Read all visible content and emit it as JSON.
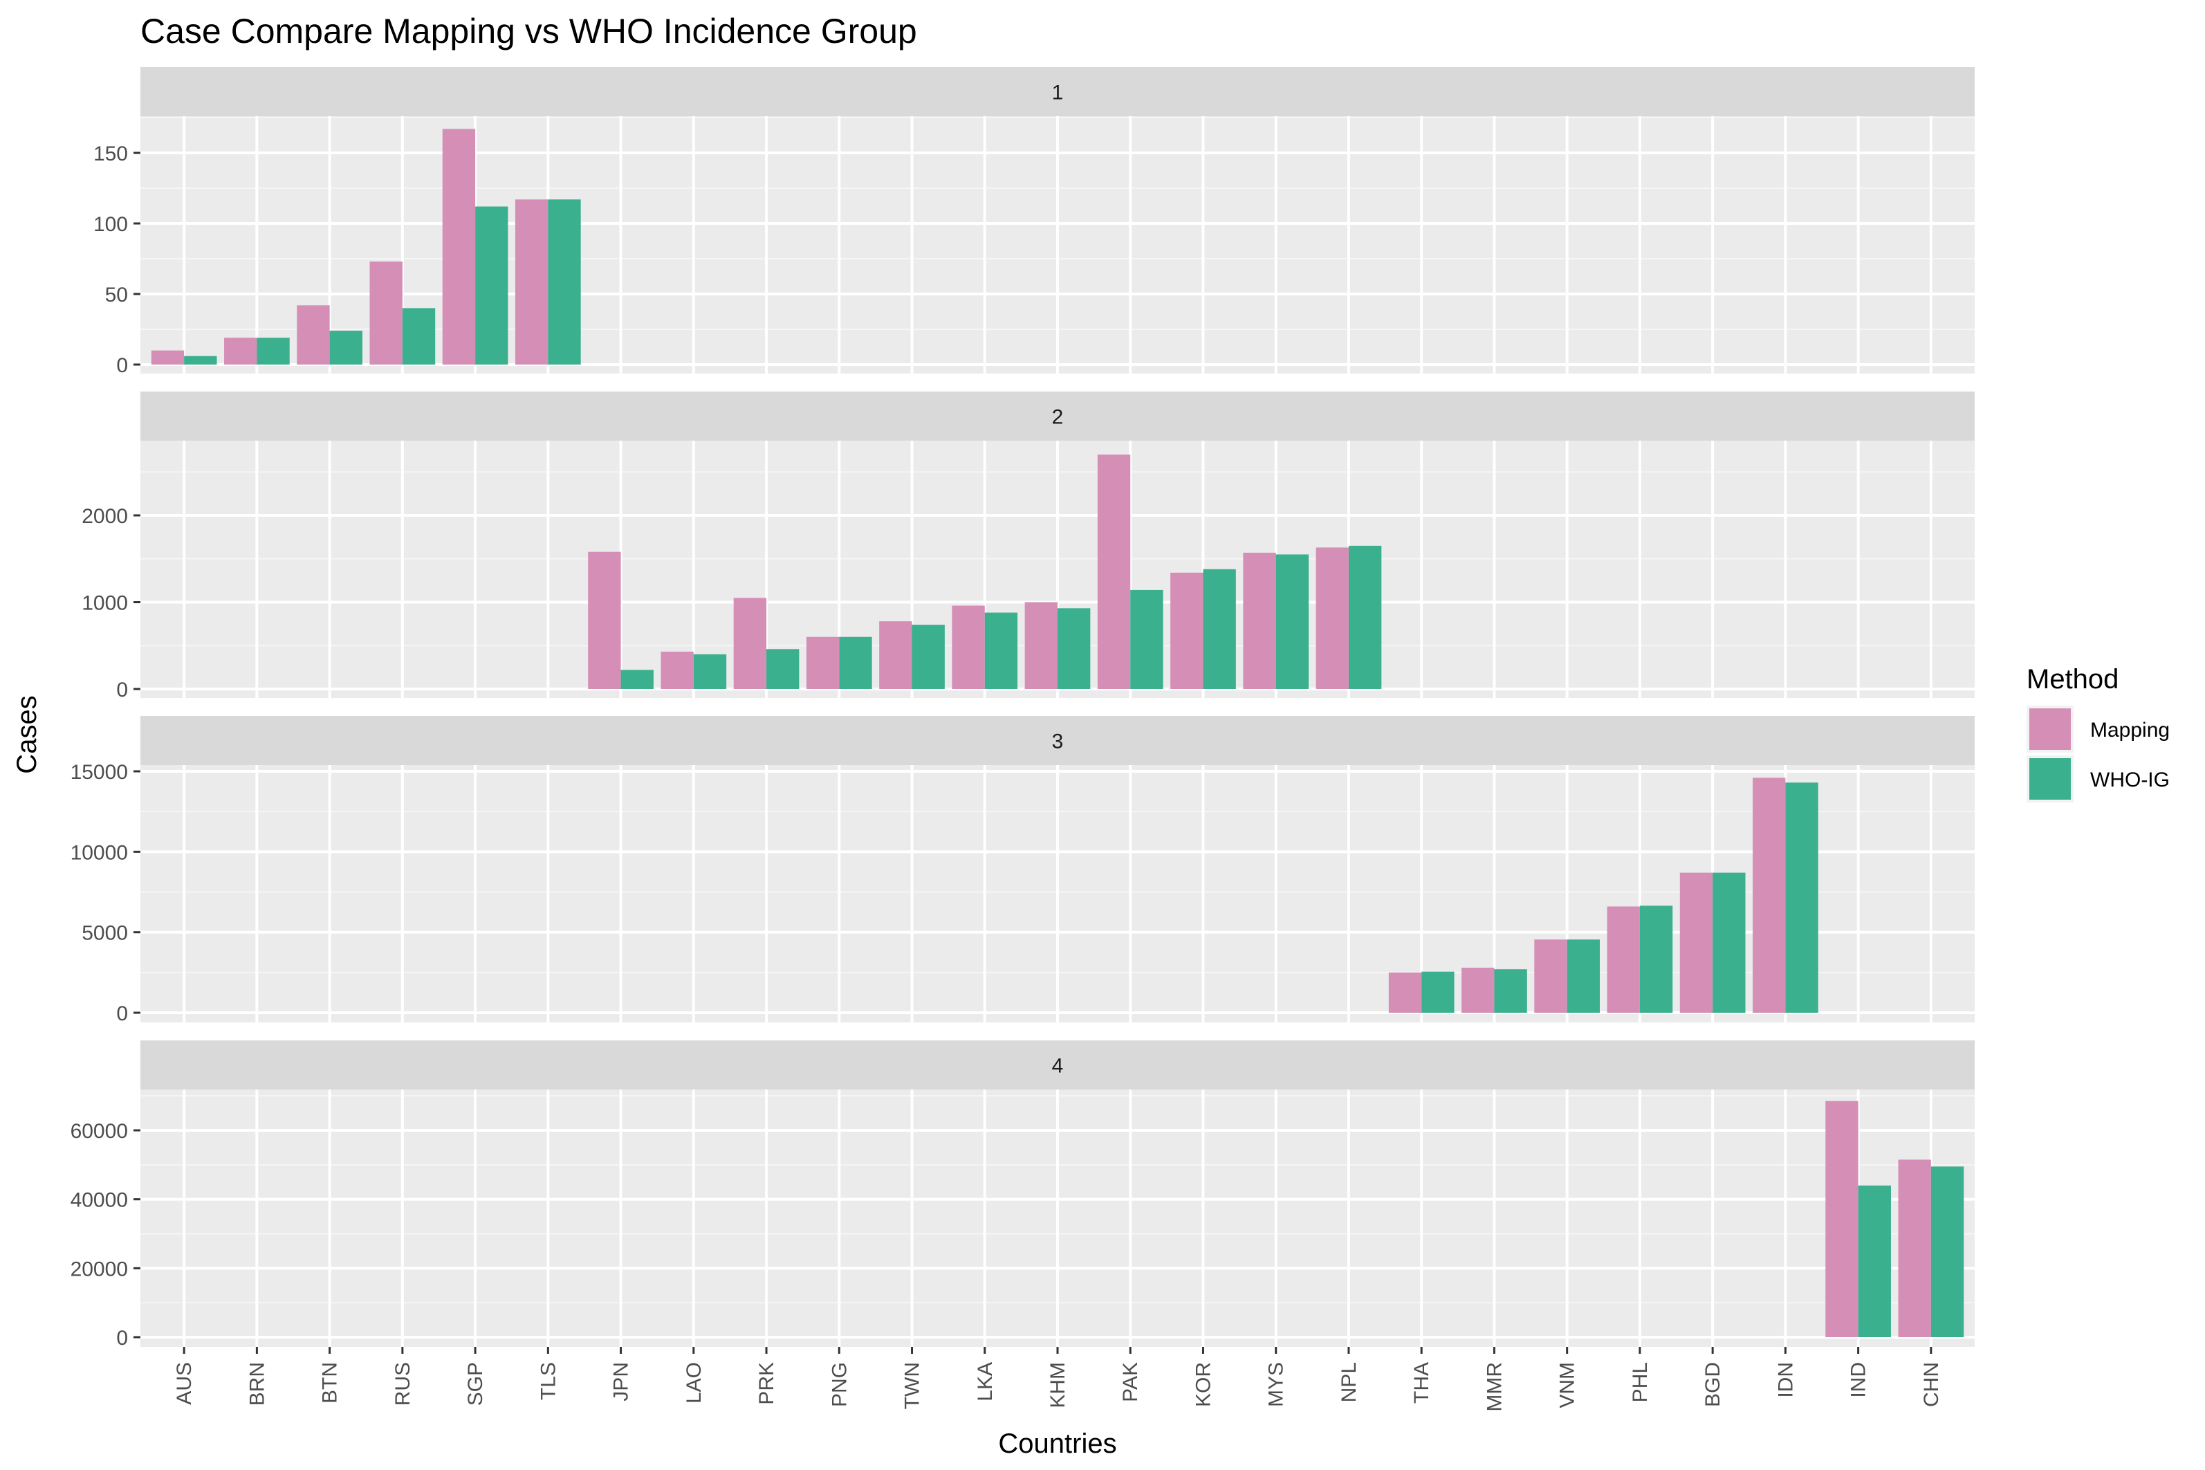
{
  "chart_data": {
    "type": "bar",
    "title": "Case Compare Mapping vs WHO Incidence Group",
    "xlabel": "Countries",
    "ylabel": "Cases",
    "categories": [
      "AUS",
      "BRN",
      "BTN",
      "RUS",
      "SGP",
      "TLS",
      "JPN",
      "LAO",
      "PRK",
      "PNG",
      "TWN",
      "LKA",
      "KHM",
      "PAK",
      "KOR",
      "MYS",
      "NPL",
      "THA",
      "MMR",
      "VNM",
      "PHL",
      "BGD",
      "IDN",
      "IND",
      "CHN"
    ],
    "legend": {
      "title": "Method",
      "position": "right",
      "entries": [
        {
          "name": "Mapping",
          "color": "#d58fb6"
        },
        {
          "name": "WHO-IG",
          "color": "#3bb08e"
        }
      ]
    },
    "grid": true,
    "facets": [
      {
        "label": "1",
        "ylim": [
          0,
          200
        ],
        "yticks": [
          0,
          50,
          100,
          150
        ],
        "series": [
          {
            "name": "Mapping",
            "values": {
              "AUS": 10,
              "BRN": 19,
              "BTN": 42,
              "RUS": 73,
              "SGP": 167,
              "TLS": 117
            }
          },
          {
            "name": "WHO-IG",
            "values": {
              "AUS": 6,
              "BRN": 19,
              "BTN": 24,
              "RUS": 40,
              "SGP": 112,
              "TLS": 117
            }
          }
        ]
      },
      {
        "label": "2",
        "ylim": [
          0,
          2800
        ],
        "yticks": [
          0,
          1000,
          2000
        ],
        "series": [
          {
            "name": "Mapping",
            "values": {
              "JPN": 1580,
              "LAO": 430,
              "PRK": 1050,
              "PNG": 600,
              "TWN": 780,
              "LKA": 960,
              "KHM": 1000,
              "PAK": 2700,
              "KOR": 1340,
              "MYS": 1570,
              "NPL": 1630
            }
          },
          {
            "name": "WHO-IG",
            "values": {
              "JPN": 220,
              "LAO": 400,
              "PRK": 460,
              "PNG": 600,
              "TWN": 740,
              "LKA": 880,
              "KHM": 930,
              "PAK": 1140,
              "KOR": 1380,
              "MYS": 1550,
              "NPL": 1650
            }
          }
        ]
      },
      {
        "label": "3",
        "ylim": [
          0,
          15000
        ],
        "yticks": [
          0,
          5000,
          10000,
          15000
        ],
        "series": [
          {
            "name": "Mapping",
            "values": {
              "THA": 2500,
              "MMR": 2800,
              "VNM": 4550,
              "PHL": 6600,
              "BGD": 8700,
              "IDN": 14600
            }
          },
          {
            "name": "WHO-IG",
            "values": {
              "THA": 2550,
              "MMR": 2700,
              "VNM": 4550,
              "PHL": 6650,
              "BGD": 8700,
              "IDN": 14300
            }
          }
        ]
      },
      {
        "label": "4",
        "ylim": [
          0,
          68500
        ],
        "yticks": [
          0,
          20000,
          40000,
          60000
        ],
        "series": [
          {
            "name": "Mapping",
            "values": {
              "IND": 68500,
              "CHN": 51500
            }
          },
          {
            "name": "WHO-IG",
            "values": {
              "IND": 44000,
              "CHN": 49500
            }
          }
        ]
      }
    ]
  }
}
